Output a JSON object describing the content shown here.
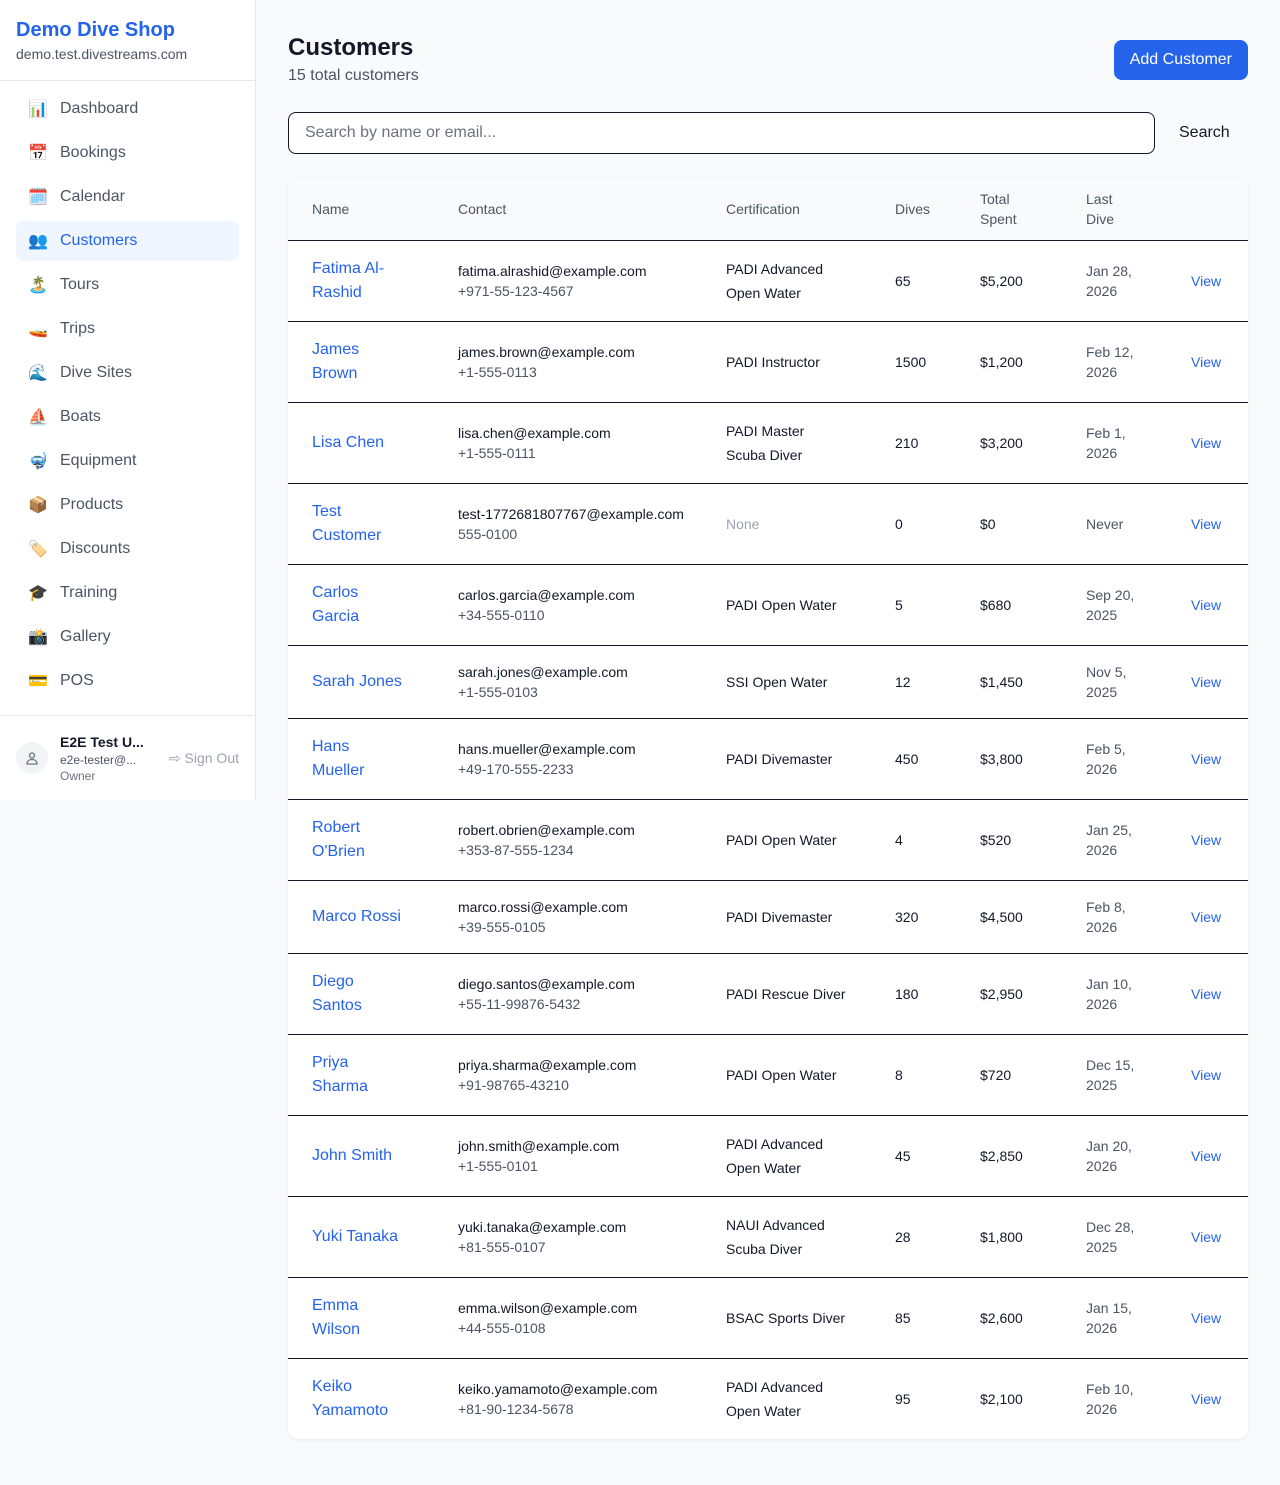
{
  "sidebar": {
    "brand": "Demo Dive Shop",
    "domain": "demo.test.divestreams.com",
    "items": [
      {
        "label": "Dashboard",
        "icon": "📊",
        "icon_name": "bar-chart-icon"
      },
      {
        "label": "Bookings",
        "icon": "📅",
        "icon_name": "calendar-date-icon"
      },
      {
        "label": "Calendar",
        "icon": "🗓️",
        "icon_name": "calendar-icon"
      },
      {
        "label": "Customers",
        "icon": "👥",
        "icon_name": "users-icon",
        "active": true
      },
      {
        "label": "Tours",
        "icon": "🏝️",
        "icon_name": "island-icon"
      },
      {
        "label": "Trips",
        "icon": "🚤",
        "icon_name": "boat-icon"
      },
      {
        "label": "Dive Sites",
        "icon": "🌊",
        "icon_name": "wave-icon"
      },
      {
        "label": "Boats",
        "icon": "⛵",
        "icon_name": "sailboat-icon"
      },
      {
        "label": "Equipment",
        "icon": "🤿",
        "icon_name": "diving-mask-icon"
      },
      {
        "label": "Products",
        "icon": "📦",
        "icon_name": "package-icon"
      },
      {
        "label": "Discounts",
        "icon": "🏷️",
        "icon_name": "tag-icon"
      },
      {
        "label": "Training",
        "icon": "🎓",
        "icon_name": "graduation-cap-icon"
      },
      {
        "label": "Gallery",
        "icon": "📸",
        "icon_name": "camera-icon"
      },
      {
        "label": "POS",
        "icon": "💳",
        "icon_name": "credit-card-icon"
      }
    ],
    "user": {
      "name": "E2E Test U...",
      "email": "e2e-tester@...",
      "role": "Owner",
      "sign_out": "Sign Out"
    }
  },
  "header": {
    "title": "Customers",
    "subtitle": "15 total customers",
    "add_button": "Add Customer"
  },
  "search": {
    "placeholder": "Search by name or email...",
    "value": "",
    "button": "Search"
  },
  "table": {
    "columns": [
      "Name",
      "Contact",
      "Certification",
      "Dives",
      "Total Spent",
      "Last Dive",
      ""
    ],
    "view_label": "View",
    "rows": [
      {
        "name": "Fatima Al-Rashid",
        "email": "fatima.alrashid@example.com",
        "phone": "+971-55-123-4567",
        "cert": "PADI Advanced Open Water",
        "dives": "65",
        "spent": "$5,200",
        "last": "Jan 28, 2026"
      },
      {
        "name": "James Brown",
        "email": "james.brown@example.com",
        "phone": "+1-555-0113",
        "cert": "PADI Instructor",
        "dives": "1500",
        "spent": "$1,200",
        "last": "Feb 12, 2026"
      },
      {
        "name": "Lisa Chen",
        "email": "lisa.chen@example.com",
        "phone": "+1-555-0111",
        "cert": "PADI Master Scuba Diver",
        "dives": "210",
        "spent": "$3,200",
        "last": "Feb 1, 2026"
      },
      {
        "name": "Test Customer",
        "email": "test-1772681807767@example.com",
        "phone": "555-0100",
        "cert": "None",
        "dives": "0",
        "spent": "$0",
        "last": "Never"
      },
      {
        "name": "Carlos Garcia",
        "email": "carlos.garcia@example.com",
        "phone": "+34-555-0110",
        "cert": "PADI Open Water",
        "dives": "5",
        "spent": "$680",
        "last": "Sep 20, 2025"
      },
      {
        "name": "Sarah Jones",
        "email": "sarah.jones@example.com",
        "phone": "+1-555-0103",
        "cert": "SSI Open Water",
        "dives": "12",
        "spent": "$1,450",
        "last": "Nov 5, 2025"
      },
      {
        "name": "Hans Mueller",
        "email": "hans.mueller@example.com",
        "phone": "+49-170-555-2233",
        "cert": "PADI Divemaster",
        "dives": "450",
        "spent": "$3,800",
        "last": "Feb 5, 2026"
      },
      {
        "name": "Robert O'Brien",
        "email": "robert.obrien@example.com",
        "phone": "+353-87-555-1234",
        "cert": "PADI Open Water",
        "dives": "4",
        "spent": "$520",
        "last": "Jan 25, 2026"
      },
      {
        "name": "Marco Rossi",
        "email": "marco.rossi@example.com",
        "phone": "+39-555-0105",
        "cert": "PADI Divemaster",
        "dives": "320",
        "spent": "$4,500",
        "last": "Feb 8, 2026"
      },
      {
        "name": "Diego Santos",
        "email": "diego.santos@example.com",
        "phone": "+55-11-99876-5432",
        "cert": "PADI Rescue Diver",
        "dives": "180",
        "spent": "$2,950",
        "last": "Jan 10, 2026"
      },
      {
        "name": "Priya Sharma",
        "email": "priya.sharma@example.com",
        "phone": "+91-98765-43210",
        "cert": "PADI Open Water",
        "dives": "8",
        "spent": "$720",
        "last": "Dec 15, 2025"
      },
      {
        "name": "John Smith",
        "email": "john.smith@example.com",
        "phone": "+1-555-0101",
        "cert": "PADI Advanced Open Water",
        "dives": "45",
        "spent": "$2,850",
        "last": "Jan 20, 2026"
      },
      {
        "name": "Yuki Tanaka",
        "email": "yuki.tanaka@example.com",
        "phone": "+81-555-0107",
        "cert": "NAUI Advanced Scuba Diver",
        "dives": "28",
        "spent": "$1,800",
        "last": "Dec 28, 2025"
      },
      {
        "name": "Emma Wilson",
        "email": "emma.wilson@example.com",
        "phone": "+44-555-0108",
        "cert": "BSAC Sports Diver",
        "dives": "85",
        "spent": "$2,600",
        "last": "Jan 15, 2026"
      },
      {
        "name": "Keiko Yamamoto",
        "email": "keiko.yamamoto@example.com",
        "phone": "+81-90-1234-5678",
        "cert": "PADI Advanced Open Water",
        "dives": "95",
        "spent": "$2,100",
        "last": "Feb 10, 2026"
      }
    ]
  }
}
